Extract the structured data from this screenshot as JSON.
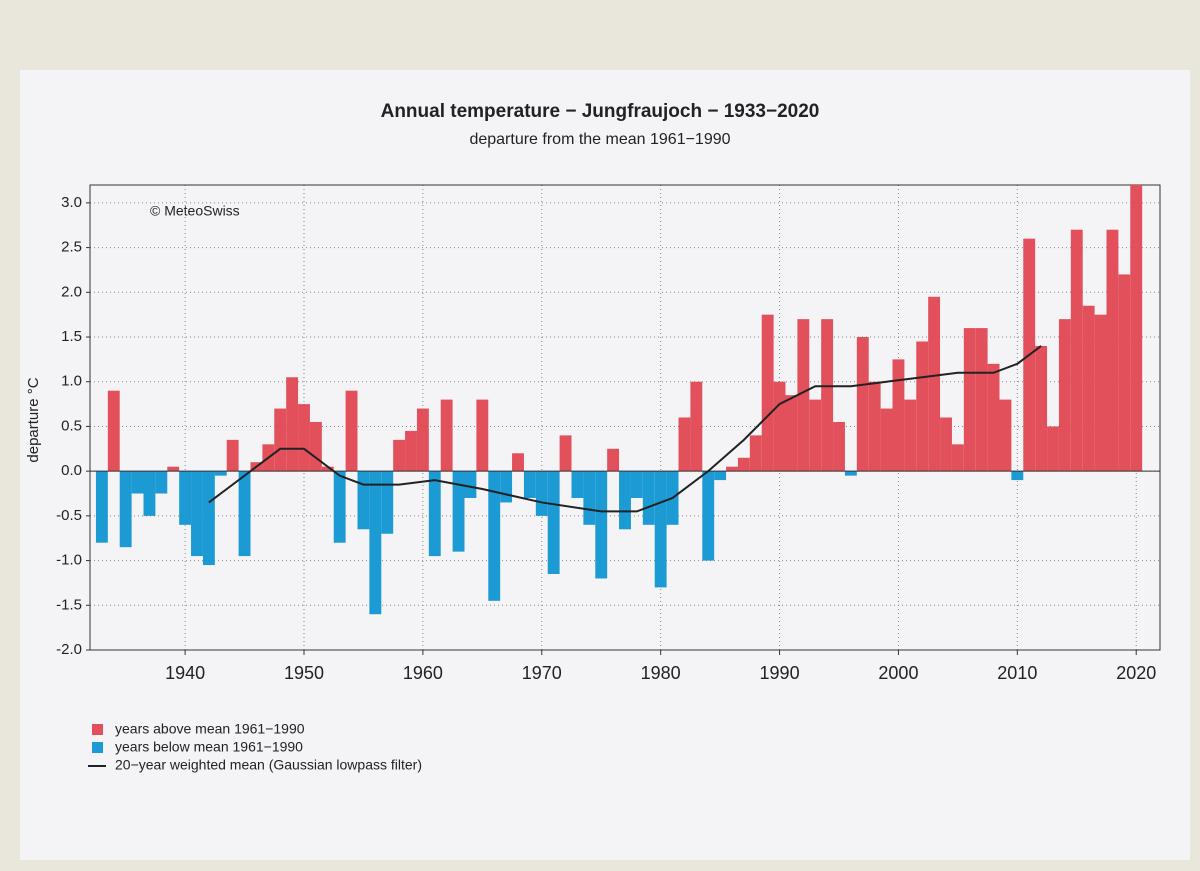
{
  "chart_data": {
    "type": "bar",
    "title": "Annual temperature − Jungfraujoch − 1933−2020",
    "subtitle": "departure from the mean 1961−1990",
    "credit": "© MeteoSwiss",
    "y_label": "departure °C",
    "x": [
      1933,
      1934,
      1935,
      1936,
      1937,
      1938,
      1939,
      1940,
      1941,
      1942,
      1943,
      1944,
      1945,
      1946,
      1947,
      1948,
      1949,
      1950,
      1951,
      1952,
      1953,
      1954,
      1955,
      1956,
      1957,
      1958,
      1959,
      1960,
      1961,
      1962,
      1963,
      1964,
      1965,
      1966,
      1967,
      1968,
      1969,
      1970,
      1971,
      1972,
      1973,
      1974,
      1975,
      1976,
      1977,
      1978,
      1979,
      1980,
      1981,
      1982,
      1983,
      1984,
      1985,
      1986,
      1987,
      1988,
      1989,
      1990,
      1991,
      1992,
      1993,
      1994,
      1995,
      1996,
      1997,
      1998,
      1999,
      2000,
      2001,
      2002,
      2003,
      2004,
      2005,
      2006,
      2007,
      2008,
      2009,
      2010,
      2011,
      2012,
      2013,
      2014,
      2015,
      2016,
      2017,
      2018,
      2019,
      2020
    ],
    "values": [
      -0.8,
      0.9,
      -0.85,
      -0.25,
      -0.5,
      -0.25,
      0.05,
      -0.6,
      -0.95,
      -1.05,
      -0.05,
      0.35,
      -0.95,
      0.1,
      0.3,
      0.7,
      1.05,
      0.75,
      0.55,
      0.05,
      -0.8,
      0.9,
      -0.65,
      -1.6,
      -0.7,
      0.35,
      0.45,
      0.7,
      -0.95,
      0.8,
      -0.9,
      -0.3,
      0.8,
      -1.45,
      -0.35,
      0.2,
      -0.3,
      -0.5,
      -1.15,
      0.4,
      -0.3,
      -0.6,
      -1.2,
      0.25,
      -0.65,
      -0.3,
      -0.6,
      -1.3,
      -0.6,
      0.6,
      1.0,
      -1.0,
      -0.1,
      0.05,
      0.15,
      0.4,
      1.75,
      1.0,
      0.85,
      1.7,
      0.8,
      1.7,
      0.55,
      -0.05,
      1.5,
      1.0,
      0.7,
      1.25,
      0.8,
      1.45,
      1.95,
      0.6,
      0.3,
      1.6,
      1.6,
      1.2,
      0.8,
      -0.1,
      2.6,
      1.4,
      0.5,
      1.7,
      2.7,
      1.85,
      1.75,
      2.7,
      2.2,
      3.2
    ],
    "legend_entries": [
      {
        "name": "years above mean 1961−1990",
        "color": "#e2505c"
      },
      {
        "name": "years below mean 1961−1990",
        "color": "#1c9ad4"
      }
    ],
    "line": {
      "name": "20−year weighted mean (Gaussian lowpass filter)",
      "color": "#222222",
      "x": [
        1942,
        1945,
        1948,
        1950,
        1953,
        1955,
        1958,
        1961,
        1965,
        1970,
        1975,
        1978,
        1981,
        1984,
        1987,
        1990,
        1993,
        1996,
        1999,
        2002,
        2005,
        2008,
        2010,
        2012
      ],
      "values": [
        -0.35,
        -0.05,
        0.25,
        0.25,
        -0.05,
        -0.15,
        -0.15,
        -0.1,
        -0.2,
        -0.35,
        -0.45,
        -0.45,
        -0.3,
        0.0,
        0.35,
        0.75,
        0.95,
        0.95,
        1.0,
        1.05,
        1.1,
        1.1,
        1.2,
        1.4
      ]
    },
    "xlim": [
      1932,
      2022
    ],
    "ylim": [
      -2.0,
      3.2
    ],
    "xticks": [
      1940,
      1950,
      1960,
      1970,
      1980,
      1990,
      2000,
      2010,
      2020
    ],
    "yticks": [
      {
        "value": -2.0,
        "label": "-2.0"
      },
      {
        "value": -1.5,
        "label": "-1.5"
      },
      {
        "value": -1.0,
        "label": "-1.0"
      },
      {
        "value": -0.5,
        "label": "-0.5"
      },
      {
        "value": 0.0,
        "label": "0.0"
      },
      {
        "value": 0.5,
        "label": "0.5"
      },
      {
        "value": 1.0,
        "label": "1.0"
      },
      {
        "value": 1.5,
        "label": "1.5"
      },
      {
        "value": 2.0,
        "label": "2.0"
      },
      {
        "value": 2.5,
        "label": "2.5"
      },
      {
        "value": 3.0,
        "label": "3.0"
      }
    ],
    "grid": true
  }
}
